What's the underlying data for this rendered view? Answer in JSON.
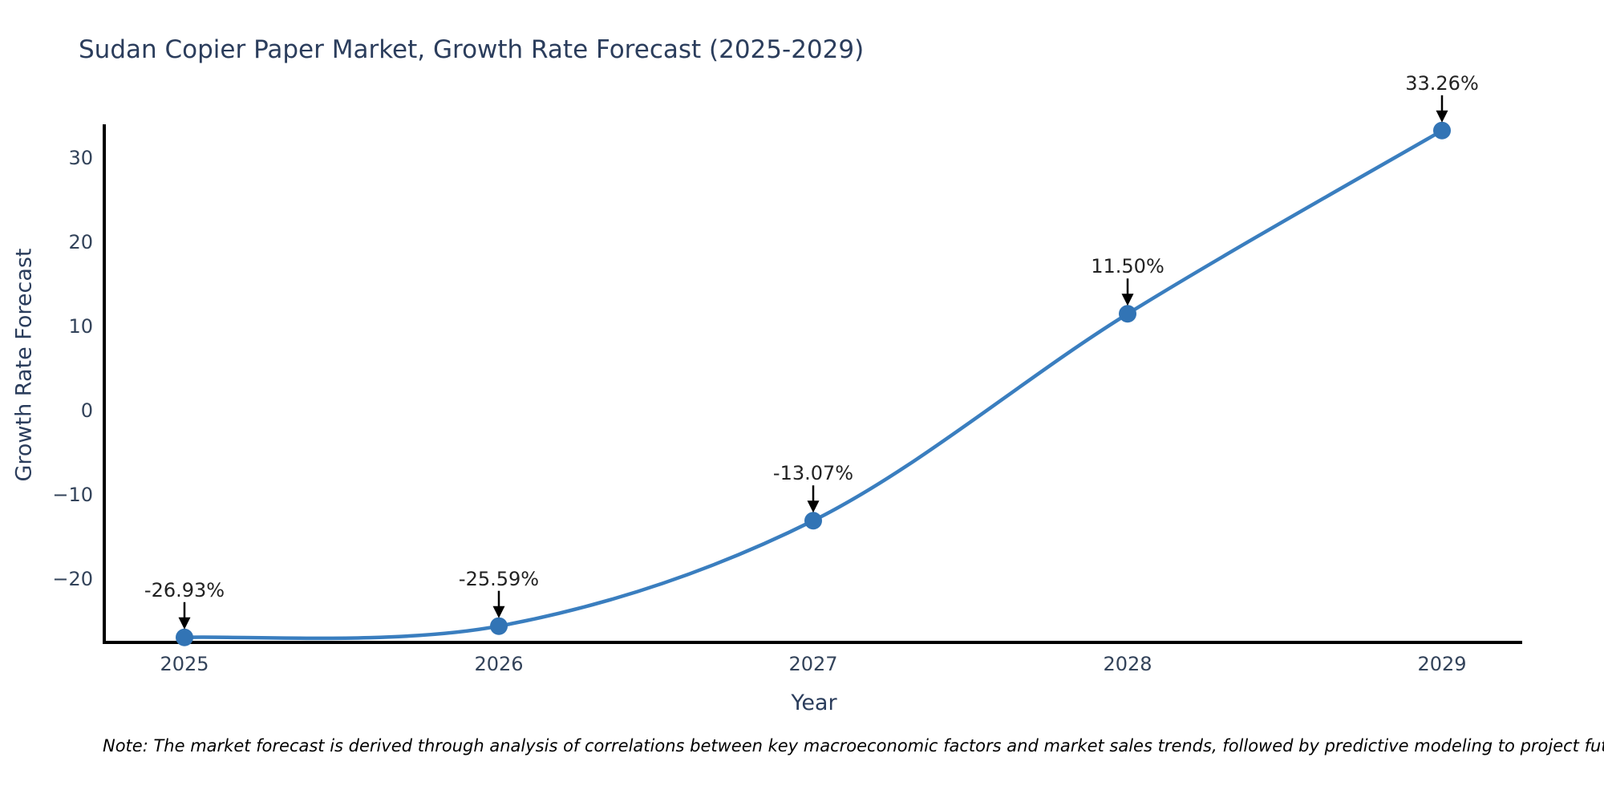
{
  "chart_data": {
    "type": "line",
    "title": "Sudan Copier Paper Market, Growth Rate Forecast (2025-2029)",
    "xlabel": "Year",
    "ylabel": "Growth Rate Forecast",
    "x": [
      2025,
      2026,
      2027,
      2028,
      2029
    ],
    "series": [
      {
        "name": "Growth Rate Forecast",
        "values": [
          -26.93,
          -25.59,
          -13.07,
          11.5,
          33.26
        ]
      }
    ],
    "point_labels": [
      "-26.93%",
      "-25.59%",
      "-13.07%",
      "11.50%",
      "33.26%"
    ],
    "x_tick_labels": [
      "2025",
      "2026",
      "2027",
      "2028",
      "2029"
    ],
    "y_ticks": [
      {
        "value": 30,
        "label": "30"
      },
      {
        "value": 20,
        "label": "20"
      },
      {
        "value": 10,
        "label": "10"
      },
      {
        "value": 0,
        "label": "0"
      },
      {
        "value": -10,
        "label": "−10"
      },
      {
        "value": -20,
        "label": "−20"
      }
    ],
    "ylim": [
      -27.6,
      33.9
    ],
    "xlim": [
      2024.74,
      2029.26
    ],
    "grid": false,
    "legend_position": "none",
    "line_shape": "spline",
    "colors": {
      "line": "#3a7ebf",
      "marker": "#3274b5",
      "axis": "#000000",
      "title_text": "#2b3d5c",
      "tick_text": "#33435a",
      "annotation_text": "#222222"
    },
    "note": "Note: The market forecast is derived through analysis of correlations between key macroeconomic factors and market sales trends, followed by predictive modeling to project future sales."
  }
}
